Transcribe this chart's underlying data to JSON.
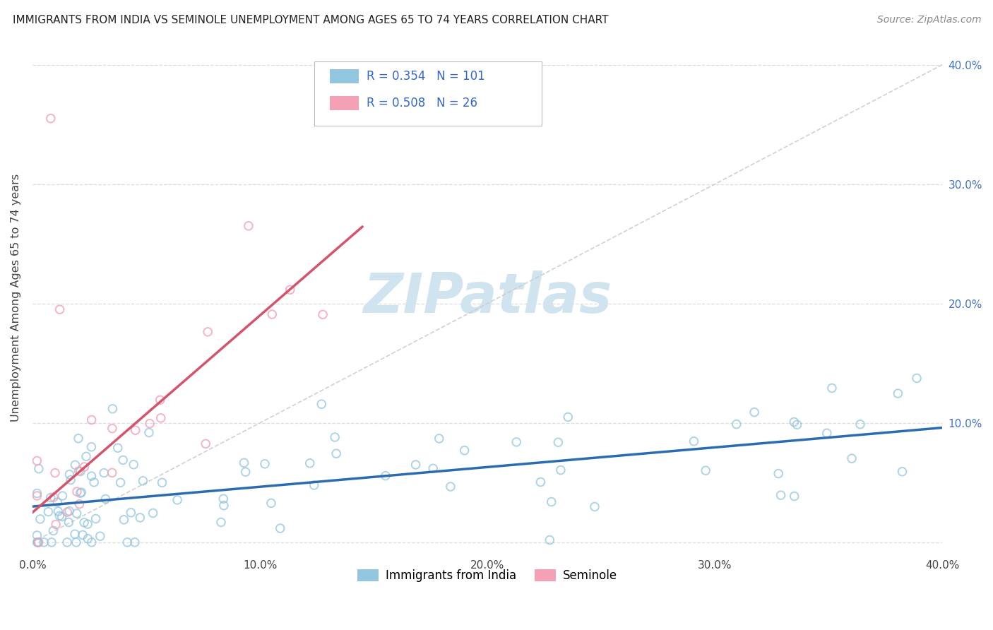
{
  "title": "IMMIGRANTS FROM INDIA VS SEMINOLE UNEMPLOYMENT AMONG AGES 65 TO 74 YEARS CORRELATION CHART",
  "source": "Source: ZipAtlas.com",
  "ylabel": "Unemployment Among Ages 65 to 74 years",
  "legend_labels": [
    "Immigrants from India",
    "Seminole"
  ],
  "R_blue": 0.354,
  "N_blue": 101,
  "R_pink": 0.508,
  "N_pink": 26,
  "xlim": [
    0.0,
    0.4
  ],
  "ylim": [
    -0.01,
    0.42
  ],
  "x_ticks": [
    0.0,
    0.1,
    0.2,
    0.3,
    0.4
  ],
  "y_ticks": [
    0.0,
    0.1,
    0.2,
    0.3,
    0.4
  ],
  "x_tick_labels": [
    "0.0%",
    "10.0%",
    "20.0%",
    "30.0%",
    "40.0%"
  ],
  "y_tick_labels_right": [
    "",
    "10.0%",
    "20.0%",
    "30.0%",
    "40.0%"
  ],
  "color_blue": "#92c5de",
  "color_pink": "#f4a0b5",
  "trendline_blue_color": "#2b6cb0",
  "trendline_pink_color": "#d4546a",
  "diag_color": "#cccccc",
  "background_color": "#ffffff",
  "watermark_color": "#d0e4f0",
  "grid_color": "#dddddd",
  "title_color": "#222222",
  "ylabel_color": "#444444",
  "right_tick_color": "#4472c4",
  "legend_text_color": "#3366cc",
  "source_color": "#888888",
  "blue_intercept": 0.03,
  "blue_slope": 0.165,
  "pink_intercept": 0.025,
  "pink_slope": 1.65,
  "pink_trend_xmax": 0.145
}
